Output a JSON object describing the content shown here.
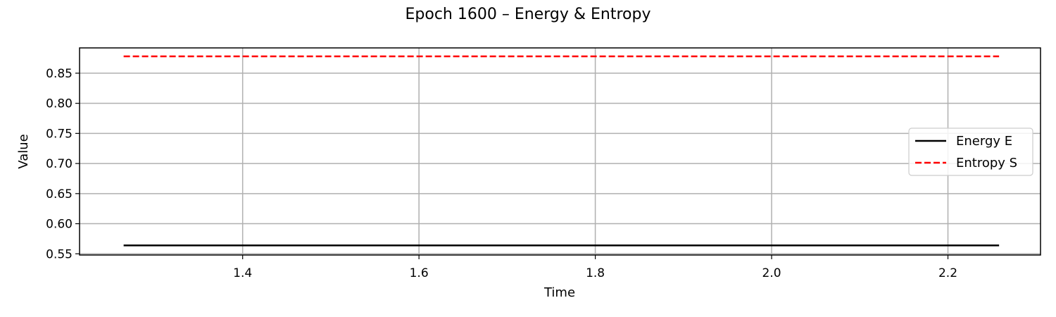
{
  "chart_data": {
    "type": "line",
    "title": "Epoch 1600 – Energy & Entropy",
    "xlabel": "Time",
    "ylabel": "Value",
    "xlim": [
      1.215,
      2.305
    ],
    "ylim": [
      0.548,
      0.892
    ],
    "xticks": [
      "1.4",
      "1.6",
      "1.8",
      "2.0",
      "2.2"
    ],
    "yticks": [
      "0.55",
      "0.60",
      "0.65",
      "0.70",
      "0.75",
      "0.80",
      "0.85"
    ],
    "grid": true,
    "legend_position": "center-right",
    "series": [
      {
        "name": "Energy E",
        "color": "#000000",
        "style": "solid",
        "x": [
          1.265,
          2.258
        ],
        "y": [
          0.564,
          0.564
        ]
      },
      {
        "name": "Entropy S",
        "color": "#ff0000",
        "style": "dashed",
        "x": [
          1.265,
          2.258
        ],
        "y": [
          0.878,
          0.878
        ]
      }
    ]
  }
}
